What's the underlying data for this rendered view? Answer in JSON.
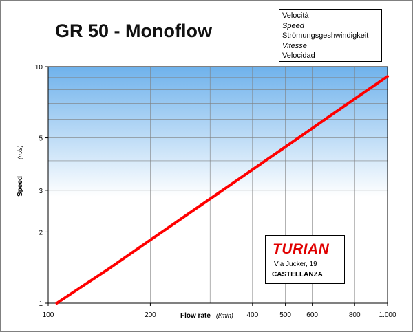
{
  "title": "GR 50 - Monoflow",
  "legend_lines": [
    {
      "text": "Velocità",
      "italic": false
    },
    {
      "text": "Speed",
      "italic": true
    },
    {
      "text": "Strömungsgeshwindigkeit",
      "italic": false
    },
    {
      "text": "Vitesse",
      "italic": true
    },
    {
      "text": "Velocidad",
      "italic": false
    }
  ],
  "logo": {
    "name": "TURIAN",
    "address_line1": "Via Jucker, 19",
    "address_line2": "CASTELLANZA"
  },
  "colors": {
    "series": "#ff0000",
    "plot_top": "#6fb2ec",
    "plot_bottom": "#ffffff",
    "grid": "#7f7f7f"
  },
  "chart_data": {
    "type": "line",
    "x_scale": "log",
    "y_scale": "log",
    "xlabel": "Flow rate",
    "xunit": "(l/min)",
    "ylabel": "Speed",
    "yunit": "(m/s)",
    "xlim": [
      100,
      1000
    ],
    "ylim": [
      1,
      10
    ],
    "x_ticks": [
      100,
      200,
      400,
      500,
      600,
      800,
      1000
    ],
    "x_tick_labels": [
      "100",
      "200",
      "400",
      "500",
      "600",
      "800",
      "1.000"
    ],
    "y_ticks": [
      1,
      2,
      3,
      5,
      10
    ],
    "y_tick_labels": [
      "1",
      "2",
      "3",
      "5",
      "10"
    ],
    "x_minor_grid": [
      200,
      300,
      400,
      500,
      600,
      700,
      800,
      900
    ],
    "y_minor_grid": [
      2,
      3,
      4,
      5,
      6,
      7,
      8,
      9
    ],
    "grid": true,
    "series": [
      {
        "x": [
          106,
          150,
          200,
          300,
          400,
          500,
          600,
          700,
          800,
          900,
          1000
        ],
        "y": [
          1.0,
          1.39,
          1.85,
          2.76,
          3.67,
          4.58,
          5.49,
          6.4,
          7.3,
          8.2,
          9.1
        ]
      }
    ]
  }
}
